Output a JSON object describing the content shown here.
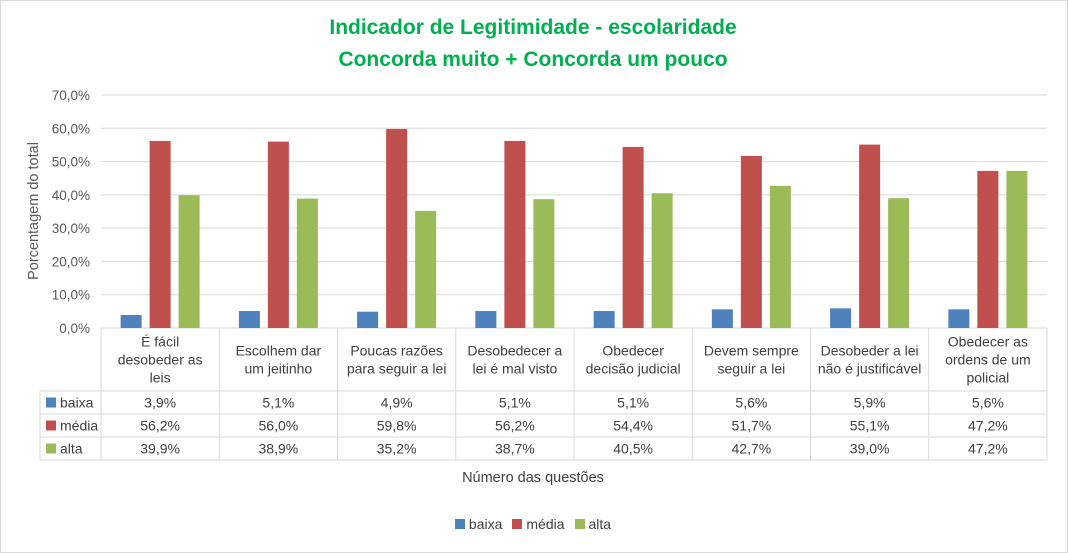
{
  "colors": {
    "title": "#00b050",
    "baixa": "#4f81bd",
    "media": "#c0504d",
    "alta": "#9bbb59",
    "grid": "#d9d9d9"
  },
  "chart_data": {
    "type": "bar",
    "title": "Indicador de Legitimidade - escolaridade",
    "subtitle": "Concorda muito + Concorda um pouco",
    "xlabel": "Número das questões",
    "ylabel": "Porcentagem do total",
    "ylim": [
      0,
      70
    ],
    "yticks": [
      "0,0%",
      "10,0%",
      "20,0%",
      "30,0%",
      "40,0%",
      "50,0%",
      "60,0%",
      "70,0%"
    ],
    "grid": true,
    "legend_position": "bottom",
    "categories": [
      [
        "É fácil",
        "desobeder as",
        "leis"
      ],
      [
        "Escolhem dar",
        "um jeitinho"
      ],
      [
        "Poucas razões",
        "para seguir a lei"
      ],
      [
        "Desobedecer a",
        "lei é mal visto"
      ],
      [
        "Obedecer",
        "decisão judicial"
      ],
      [
        "Devem sempre",
        "seguir a lei"
      ],
      [
        "Desobeder a lei",
        "não é justificável"
      ],
      [
        "Obedecer as",
        "ordens de um",
        "policial"
      ]
    ],
    "series": [
      {
        "name": "baixa",
        "color": "#4f81bd",
        "values": [
          3.9,
          5.1,
          4.9,
          5.1,
          5.1,
          5.6,
          5.9,
          5.6
        ],
        "labels": [
          "3,9%",
          "5,1%",
          "4,9%",
          "5,1%",
          "5,1%",
          "5,6%",
          "5,9%",
          "5,6%"
        ]
      },
      {
        "name": "média",
        "color": "#c0504d",
        "values": [
          56.2,
          56.0,
          59.8,
          56.2,
          54.4,
          51.7,
          55.1,
          47.2
        ],
        "labels": [
          "56,2%",
          "56,0%",
          "59,8%",
          "56,2%",
          "54,4%",
          "51,7%",
          "55,1%",
          "47,2%"
        ]
      },
      {
        "name": "alta",
        "color": "#9bbb59",
        "values": [
          39.9,
          38.9,
          35.2,
          38.7,
          40.5,
          42.7,
          39.0,
          47.2
        ],
        "labels": [
          "39,9%",
          "38,9%",
          "35,2%",
          "38,7%",
          "40,5%",
          "42,7%",
          "39,0%",
          "47,2%"
        ]
      }
    ]
  }
}
